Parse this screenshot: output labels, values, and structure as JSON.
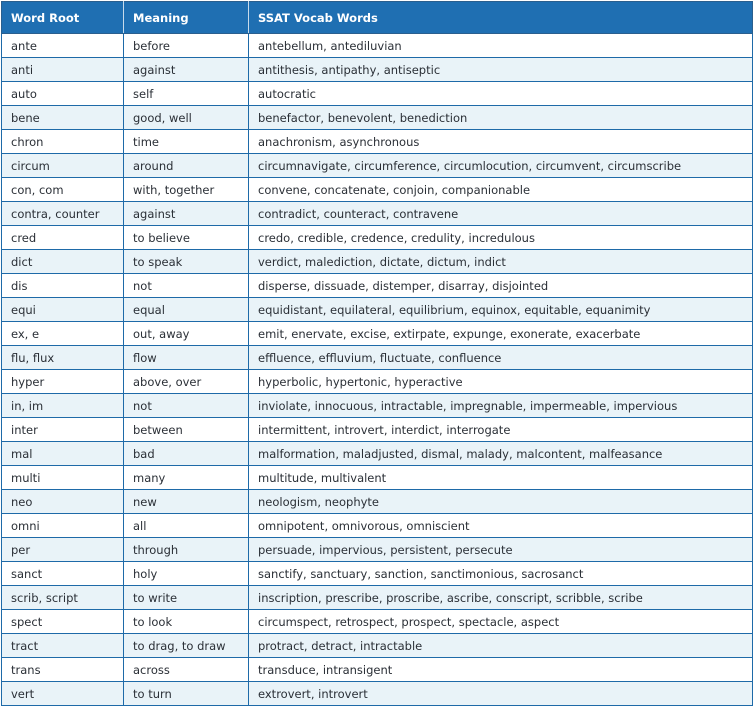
{
  "table": {
    "headers": [
      "Word Root",
      "Meaning",
      "SSAT Vocab Words"
    ],
    "rows": [
      [
        "ante",
        "before",
        "antebellum, antediluvian"
      ],
      [
        "anti",
        "against",
        "antithesis, antipathy, antiseptic"
      ],
      [
        "auto",
        "self",
        "autocratic"
      ],
      [
        "bene",
        "good, well",
        "benefactor, benevolent, benediction"
      ],
      [
        "chron",
        "time",
        "anachronism, asynchronous"
      ],
      [
        "circum",
        "around",
        "circumnavigate, circumference, circumlocution, circumvent, circumscribe"
      ],
      [
        "con, com",
        "with, together",
        "convene, concatenate, conjoin, companionable"
      ],
      [
        "contra, counter",
        "against",
        "contradict, counteract, contravene"
      ],
      [
        "cred",
        "to believe",
        "credo, credible, credence, credulity, incredulous"
      ],
      [
        "dict",
        "to speak",
        "verdict, malediction, dictate, dictum, indict"
      ],
      [
        "dis",
        "not",
        "disperse, dissuade, distemper, disarray, disjointed"
      ],
      [
        "equi",
        "equal",
        "equidistant, equilateral, equilibrium, equinox, equitable, equanimity"
      ],
      [
        "ex, e",
        "out, away",
        "emit, enervate, excise, extirpate, expunge, exonerate, exacerbate"
      ],
      [
        "flu, flux",
        "flow",
        "effluence, effluvium, fluctuate, confluence"
      ],
      [
        "hyper",
        "above, over",
        "hyperbolic, hypertonic, hyperactive"
      ],
      [
        "in, im",
        "not",
        "inviolate, innocuous, intractable, impregnable, impermeable, impervious"
      ],
      [
        "inter",
        "between",
        "intermittent, introvert, interdict, interrogate"
      ],
      [
        "mal",
        "bad",
        "malformation, maladjusted, dismal, malady, malcontent, malfeasance"
      ],
      [
        "multi",
        "many",
        "multitude, multivalent"
      ],
      [
        "neo",
        "new",
        "neologism, neophyte"
      ],
      [
        "omni",
        "all",
        "omnipotent, omnivorous, omniscient"
      ],
      [
        "per",
        "through",
        "persuade, impervious, persistent, persecute"
      ],
      [
        "sanct",
        "holy",
        "sanctify, sanctuary, sanction, sanctimonious, sacrosanct"
      ],
      [
        "scrib, script",
        "to write",
        "inscription, prescribe, proscribe, ascribe, conscript, scribble, scribe"
      ],
      [
        "spect",
        "to look",
        "circumspect, retrospect, prospect, spectacle, aspect"
      ],
      [
        "tract",
        "to drag, to draw",
        "protract, detract, intractable"
      ],
      [
        "trans",
        "across",
        "transduce, intransigent"
      ],
      [
        "vert",
        "to turn",
        "extrovert, introvert"
      ]
    ]
  }
}
